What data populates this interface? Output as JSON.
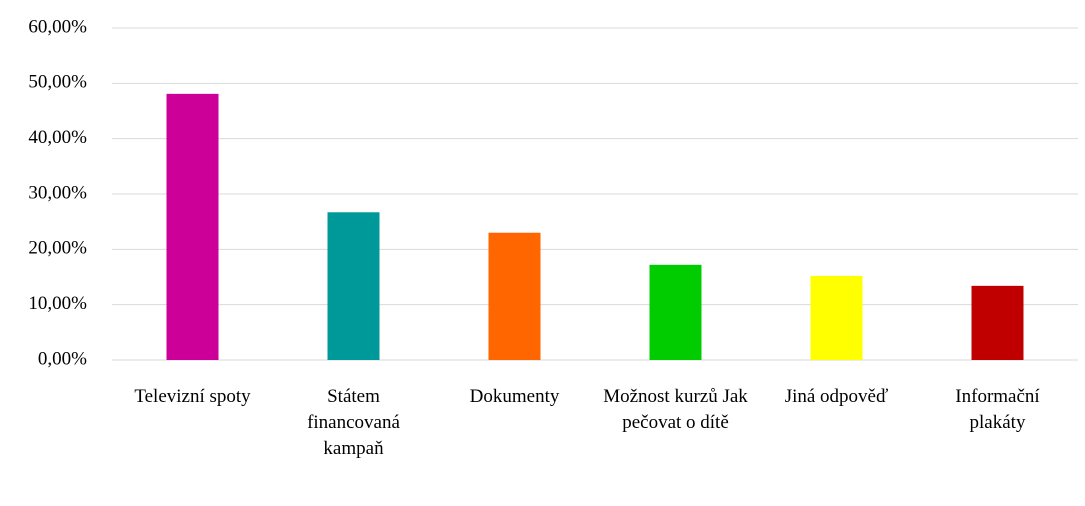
{
  "chart_data": {
    "type": "bar",
    "categories": [
      "Televizní spoty",
      "Státem financovaná kampaň",
      "Dokumenty",
      "Možnost kurzů Jak pečovat o dítě",
      "Jiná odpověď",
      "Informační plakáty"
    ],
    "values": [
      48.1,
      26.7,
      23,
      17.2,
      15.2,
      13.4
    ],
    "colors": [
      "#cc0099",
      "#009999",
      "#ff6600",
      "#00cc00",
      "#ffff00",
      "#c00000"
    ],
    "ylim": [
      0,
      60
    ],
    "yticks": [
      {
        "value": 0,
        "label": "0,00%"
      },
      {
        "value": 10,
        "label": "10,00%"
      },
      {
        "value": 20,
        "label": "20,00%"
      },
      {
        "value": 30,
        "label": "30,00%"
      },
      {
        "value": 40,
        "label": "40,00%"
      },
      {
        "value": 50,
        "label": "50,00%"
      },
      {
        "value": 60,
        "label": "60,00%"
      }
    ],
    "grid": true
  }
}
